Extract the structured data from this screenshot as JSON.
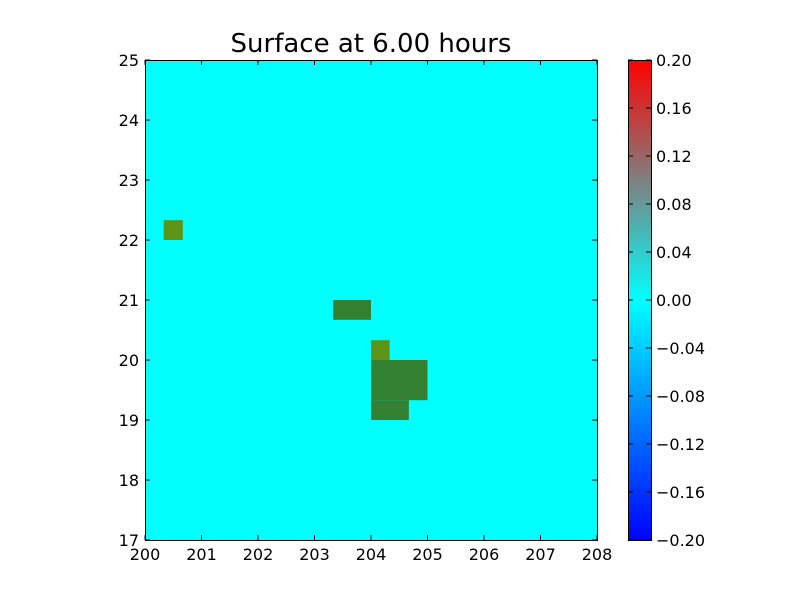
{
  "chart_data": {
    "type": "heatmap",
    "title": "Surface at 6.00 hours",
    "xlabel": "",
    "ylabel": "",
    "xlim": [
      200,
      208
    ],
    "ylim": [
      17,
      25
    ],
    "x_ticks": [
      "200",
      "201",
      "202",
      "203",
      "204",
      "205",
      "206",
      "207",
      "208"
    ],
    "y_ticks": [
      "17",
      "18",
      "19",
      "20",
      "21",
      "22",
      "23",
      "24",
      "25"
    ],
    "background_color": "#00ffff",
    "cells": [
      {
        "x0": 200.33,
        "x1": 200.67,
        "y0": 22.0,
        "y1": 22.33,
        "color": "#5d9416"
      },
      {
        "x0": 203.33,
        "x1": 204.0,
        "y0": 20.67,
        "y1": 21.0,
        "color": "#338033"
      },
      {
        "x0": 204.0,
        "x1": 204.33,
        "y0": 20.0,
        "y1": 20.33,
        "color": "#5d9416"
      },
      {
        "x0": 204.0,
        "x1": 205.0,
        "y0": 19.33,
        "y1": 20.0,
        "color": "#338033"
      },
      {
        "x0": 204.0,
        "x1": 204.67,
        "y0": 19.0,
        "y1": 19.33,
        "color": "#338033"
      }
    ],
    "colorbar": {
      "range": [
        -0.2,
        0.2
      ],
      "ticks": [
        "−0.20",
        "−0.16",
        "−0.12",
        "−0.08",
        "−0.04",
        "0.00",
        "0.04",
        "0.08",
        "0.12",
        "0.16",
        "0.20"
      ],
      "tick_values": [
        -0.2,
        -0.16,
        -0.12,
        -0.08,
        -0.04,
        0.0,
        0.04,
        0.08,
        0.12,
        0.16,
        0.2
      ],
      "gradient": [
        "#0000ff",
        "#00ffff",
        "#ff0000"
      ]
    }
  }
}
